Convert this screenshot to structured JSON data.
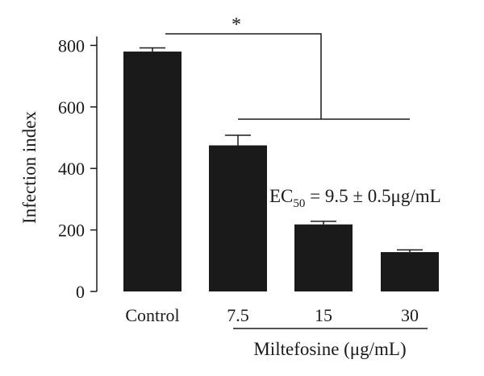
{
  "chart_data": {
    "type": "bar",
    "categories": [
      "Control",
      "7.5",
      "15",
      "30"
    ],
    "values": [
      780,
      475,
      218,
      128
    ],
    "errors": [
      12,
      33,
      10,
      7
    ],
    "ylabel": "Infection index",
    "xlabel": "Miltefosine (μg/mL)",
    "yticks": [
      0,
      200,
      400,
      600,
      800
    ],
    "ylim": [
      0,
      850
    ],
    "bar_color": "#1a1a1a",
    "annotation": {
      "prefix": "EC",
      "subscript": "50",
      "text": " = 9.5 ± 0.5μg/mL"
    },
    "significance": "*",
    "grid": false,
    "legend": "none"
  }
}
